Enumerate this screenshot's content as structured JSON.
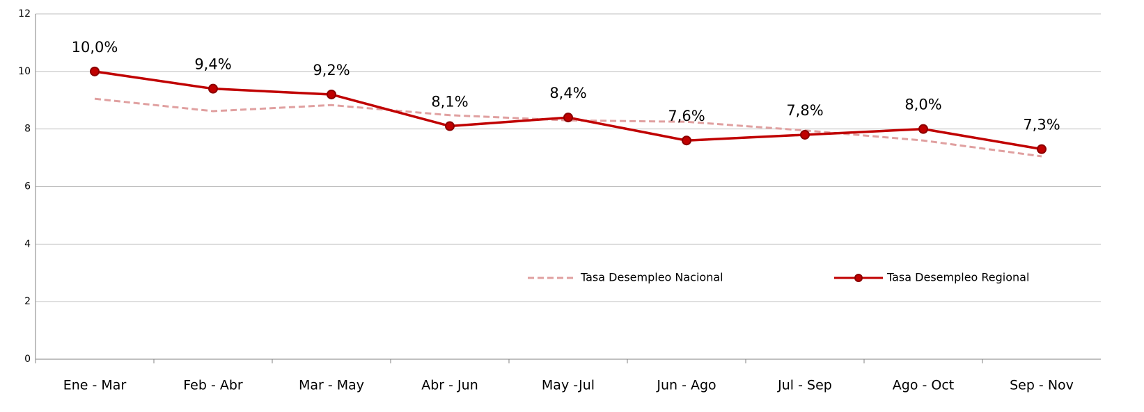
{
  "chart_data": {
    "type": "line",
    "categories": [
      "Ene - Mar",
      "Feb - Abr",
      "Mar - May",
      "Abr - Jun",
      "May -Jul",
      "Jun - Ago",
      "Jul - Sep",
      "Ago - Oct",
      "Sep - Nov"
    ],
    "series": [
      {
        "name": "Tasa Desempleo Nacional",
        "color": "#e0a0a0",
        "dashed": true,
        "markers": false,
        "values": [
          9.05,
          8.62,
          8.83,
          8.48,
          8.3,
          8.25,
          7.95,
          7.6,
          7.05
        ]
      },
      {
        "name": "Tasa Desempleo Regional",
        "color": "#c00000",
        "dashed": false,
        "markers": true,
        "values": [
          10.0,
          9.4,
          9.2,
          8.1,
          8.4,
          7.6,
          7.8,
          8.0,
          7.3
        ],
        "value_labels": [
          "10,0%",
          "9,4%",
          "9,2%",
          "8,1%",
          "8,4%",
          "7,6%",
          "7,8%",
          "8,0%",
          "7,3%"
        ]
      }
    ],
    "ylim": [
      0,
      12
    ],
    "yticks": [
      0,
      2,
      4,
      6,
      8,
      10,
      12
    ],
    "grid": true
  }
}
